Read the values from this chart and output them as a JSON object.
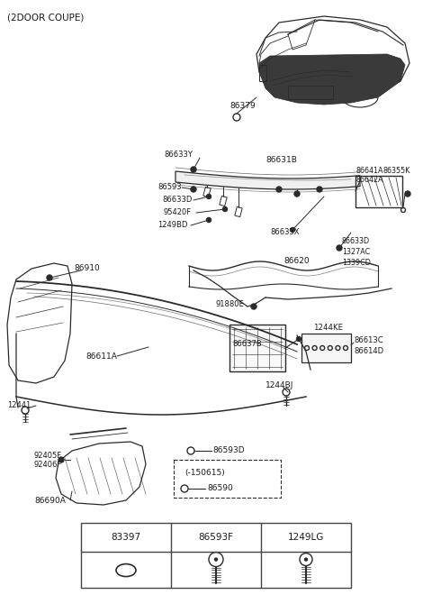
{
  "title": "(2DOOR COUPE)",
  "bg": "#ffffff",
  "lc": "#2a2a2a",
  "tc": "#1a1a1a",
  "table_headers": [
    "83397",
    "86593F",
    "1249LG"
  ]
}
